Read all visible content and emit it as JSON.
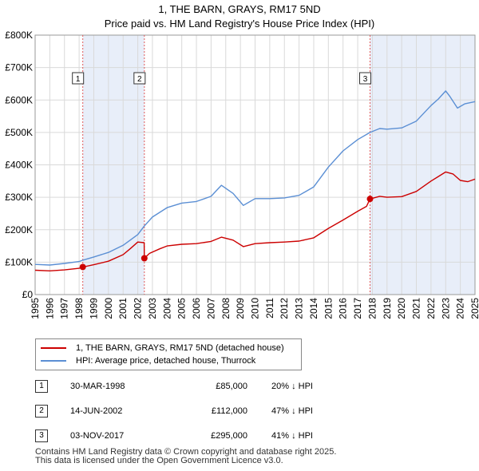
{
  "chart_data": {
    "type": "line",
    "title": "1, THE BARN, GRAYS, RM17 5ND",
    "subtitle": "Price paid vs. HM Land Registry's House Price Index (HPI)",
    "xlabel": "",
    "ylabel": "",
    "xlim": [
      1995,
      2025
    ],
    "ylim": [
      0,
      800000
    ],
    "grid": true,
    "x_ticks": [
      "1995",
      "1996",
      "1997",
      "1998",
      "1999",
      "2000",
      "2001",
      "2002",
      "2003",
      "2004",
      "2005",
      "2006",
      "2007",
      "2008",
      "2009",
      "2010",
      "2011",
      "2012",
      "2013",
      "2014",
      "2015",
      "2016",
      "2017",
      "2018",
      "2019",
      "2020",
      "2021",
      "2022",
      "2023",
      "2024",
      "2025"
    ],
    "y_ticks": [
      {
        "value": 0,
        "label": "£0"
      },
      {
        "value": 100000,
        "label": "£100K"
      },
      {
        "value": 200000,
        "label": "£200K"
      },
      {
        "value": 300000,
        "label": "£300K"
      },
      {
        "value": 400000,
        "label": "£400K"
      },
      {
        "value": 500000,
        "label": "£500K"
      },
      {
        "value": 600000,
        "label": "£600K"
      },
      {
        "value": 700000,
        "label": "£700K"
      },
      {
        "value": 800000,
        "label": "£800K"
      }
    ],
    "series": [
      {
        "name": "1, THE BARN, GRAYS, RM17 5ND (detached house)",
        "color": "#cc0000",
        "x": [
          1995.0,
          1996.0,
          1997.0,
          1998.0,
          1998.25,
          1999.0,
          2000.0,
          2001.0,
          2001.5,
          2002.0,
          2002.44,
          2002.45,
          2002.8,
          2003.5,
          2004.0,
          2005.0,
          2006.0,
          2007.0,
          2007.7,
          2008.5,
          2009.2,
          2010.0,
          2011.0,
          2012.0,
          2013.0,
          2014.0,
          2015.0,
          2016.0,
          2017.0,
          2017.6,
          2017.84,
          2018.5,
          2019.0,
          2020.0,
          2021.0,
          2022.0,
          2022.5,
          2023.0,
          2023.5,
          2024.0,
          2024.5,
          2025.0
        ],
        "y": [
          75000,
          73000,
          76000,
          81000,
          85000,
          92000,
          103000,
          123000,
          142000,
          162000,
          160000,
          112000,
          127000,
          141000,
          150000,
          155000,
          157000,
          164000,
          177000,
          168000,
          148000,
          157000,
          160000,
          162000,
          165000,
          175000,
          204000,
          230000,
          257000,
          272000,
          295000,
          303000,
          300000,
          302000,
          318000,
          350000,
          364000,
          378000,
          372000,
          352000,
          348000,
          356000
        ]
      },
      {
        "name": "HPI: Average price, detached house, Thurrock",
        "color": "#5b8fd4",
        "x": [
          1995.0,
          1996.0,
          1997.0,
          1998.0,
          1998.25,
          1999.0,
          2000.0,
          2001.0,
          2002.0,
          2002.44,
          2003.0,
          2004.0,
          2005.0,
          2006.0,
          2007.0,
          2007.7,
          2008.5,
          2009.2,
          2010.0,
          2011.0,
          2012.0,
          2013.0,
          2014.0,
          2015.0,
          2016.0,
          2017.0,
          2017.84,
          2018.5,
          2019.0,
          2020.0,
          2021.0,
          2022.0,
          2022.5,
          2023.0,
          2023.3,
          2023.8,
          2024.3,
          2025.0
        ],
        "y": [
          93000,
          91000,
          96000,
          102000,
          106000,
          116000,
          130000,
          152000,
          185000,
          211000,
          239000,
          268000,
          282000,
          287000,
          303000,
          337000,
          312000,
          275000,
          296000,
          296000,
          298000,
          306000,
          332000,
          393000,
          443000,
          478000,
          500000,
          512000,
          510000,
          514000,
          535000,
          583000,
          603000,
          628000,
          610000,
          575000,
          588000,
          595000
        ]
      }
    ],
    "markers": [
      {
        "id": "1",
        "x": 1998.25,
        "y": 85000,
        "label": "1"
      },
      {
        "id": "2",
        "x": 2002.45,
        "y": 112000,
        "label": "2"
      },
      {
        "id": "3",
        "x": 2017.84,
        "y": 295000,
        "label": "3"
      }
    ]
  },
  "legend": {
    "items": [
      {
        "label": "1, THE BARN, GRAYS, RM17 5ND (detached house)",
        "color": "#cc0000"
      },
      {
        "label": "HPI: Average price, detached house, Thurrock",
        "color": "#5b8fd4"
      }
    ]
  },
  "transactions": [
    {
      "num": "1",
      "date": "30-MAR-1998",
      "price": "£85,000",
      "hpi": "20% ↓ HPI"
    },
    {
      "num": "2",
      "date": "14-JUN-2002",
      "price": "£112,000",
      "hpi": "47% ↓ HPI"
    },
    {
      "num": "3",
      "date": "03-NOV-2017",
      "price": "£295,000",
      "hpi": "41% ↓ HPI"
    }
  ],
  "footer": {
    "line1": "Contains HM Land Registry data © Crown copyright and database right 2025.",
    "line2": "This data is licensed under the Open Government Licence v3.0."
  }
}
